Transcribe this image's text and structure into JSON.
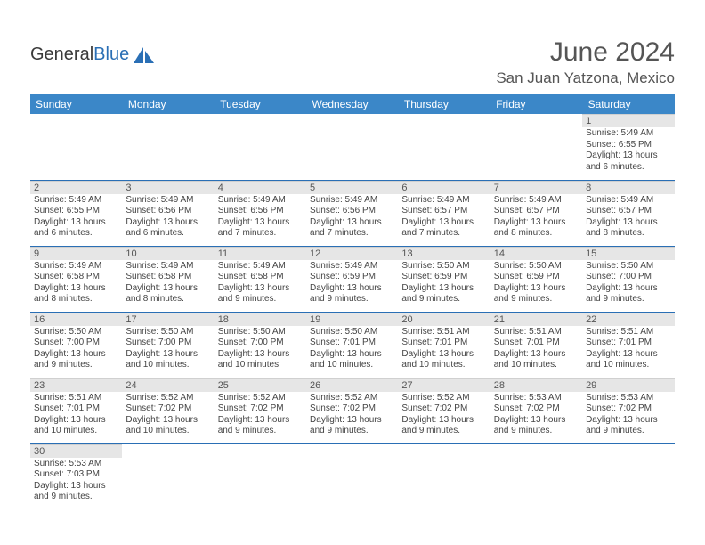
{
  "logo": {
    "text1": "General",
    "text2": "Blue"
  },
  "header": {
    "title": "June 2024",
    "location": "San Juan Yatzona, Mexico"
  },
  "colors": {
    "header_bg": "#3b87c8",
    "header_text": "#ffffff",
    "daynum_bg": "#e6e6e6",
    "row_separator": "#2a6fb5",
    "logo_blue": "#2a6fb5",
    "title_color": "#555555",
    "text_color": "#444444",
    "background": "#ffffff"
  },
  "daysOfWeek": [
    "Sunday",
    "Monday",
    "Tuesday",
    "Wednesday",
    "Thursday",
    "Friday",
    "Saturday"
  ],
  "startDayIndex": 6,
  "daysInMonth": 30,
  "cells": {
    "1": {
      "sunrise": "5:49 AM",
      "sunset": "6:55 PM",
      "daylight": "13 hours and 6 minutes."
    },
    "2": {
      "sunrise": "5:49 AM",
      "sunset": "6:55 PM",
      "daylight": "13 hours and 6 minutes."
    },
    "3": {
      "sunrise": "5:49 AM",
      "sunset": "6:56 PM",
      "daylight": "13 hours and 6 minutes."
    },
    "4": {
      "sunrise": "5:49 AM",
      "sunset": "6:56 PM",
      "daylight": "13 hours and 7 minutes."
    },
    "5": {
      "sunrise": "5:49 AM",
      "sunset": "6:56 PM",
      "daylight": "13 hours and 7 minutes."
    },
    "6": {
      "sunrise": "5:49 AM",
      "sunset": "6:57 PM",
      "daylight": "13 hours and 7 minutes."
    },
    "7": {
      "sunrise": "5:49 AM",
      "sunset": "6:57 PM",
      "daylight": "13 hours and 8 minutes."
    },
    "8": {
      "sunrise": "5:49 AM",
      "sunset": "6:57 PM",
      "daylight": "13 hours and 8 minutes."
    },
    "9": {
      "sunrise": "5:49 AM",
      "sunset": "6:58 PM",
      "daylight": "13 hours and 8 minutes."
    },
    "10": {
      "sunrise": "5:49 AM",
      "sunset": "6:58 PM",
      "daylight": "13 hours and 8 minutes."
    },
    "11": {
      "sunrise": "5:49 AM",
      "sunset": "6:58 PM",
      "daylight": "13 hours and 9 minutes."
    },
    "12": {
      "sunrise": "5:49 AM",
      "sunset": "6:59 PM",
      "daylight": "13 hours and 9 minutes."
    },
    "13": {
      "sunrise": "5:50 AM",
      "sunset": "6:59 PM",
      "daylight": "13 hours and 9 minutes."
    },
    "14": {
      "sunrise": "5:50 AM",
      "sunset": "6:59 PM",
      "daylight": "13 hours and 9 minutes."
    },
    "15": {
      "sunrise": "5:50 AM",
      "sunset": "7:00 PM",
      "daylight": "13 hours and 9 minutes."
    },
    "16": {
      "sunrise": "5:50 AM",
      "sunset": "7:00 PM",
      "daylight": "13 hours and 9 minutes."
    },
    "17": {
      "sunrise": "5:50 AM",
      "sunset": "7:00 PM",
      "daylight": "13 hours and 10 minutes."
    },
    "18": {
      "sunrise": "5:50 AM",
      "sunset": "7:00 PM",
      "daylight": "13 hours and 10 minutes."
    },
    "19": {
      "sunrise": "5:50 AM",
      "sunset": "7:01 PM",
      "daylight": "13 hours and 10 minutes."
    },
    "20": {
      "sunrise": "5:51 AM",
      "sunset": "7:01 PM",
      "daylight": "13 hours and 10 minutes."
    },
    "21": {
      "sunrise": "5:51 AM",
      "sunset": "7:01 PM",
      "daylight": "13 hours and 10 minutes."
    },
    "22": {
      "sunrise": "5:51 AM",
      "sunset": "7:01 PM",
      "daylight": "13 hours and 10 minutes."
    },
    "23": {
      "sunrise": "5:51 AM",
      "sunset": "7:01 PM",
      "daylight": "13 hours and 10 minutes."
    },
    "24": {
      "sunrise": "5:52 AM",
      "sunset": "7:02 PM",
      "daylight": "13 hours and 10 minutes."
    },
    "25": {
      "sunrise": "5:52 AM",
      "sunset": "7:02 PM",
      "daylight": "13 hours and 9 minutes."
    },
    "26": {
      "sunrise": "5:52 AM",
      "sunset": "7:02 PM",
      "daylight": "13 hours and 9 minutes."
    },
    "27": {
      "sunrise": "5:52 AM",
      "sunset": "7:02 PM",
      "daylight": "13 hours and 9 minutes."
    },
    "28": {
      "sunrise": "5:53 AM",
      "sunset": "7:02 PM",
      "daylight": "13 hours and 9 minutes."
    },
    "29": {
      "sunrise": "5:53 AM",
      "sunset": "7:02 PM",
      "daylight": "13 hours and 9 minutes."
    },
    "30": {
      "sunrise": "5:53 AM",
      "sunset": "7:03 PM",
      "daylight": "13 hours and 9 minutes."
    }
  },
  "labels": {
    "sunrise": "Sunrise:",
    "sunset": "Sunset:",
    "daylight": "Daylight:"
  }
}
